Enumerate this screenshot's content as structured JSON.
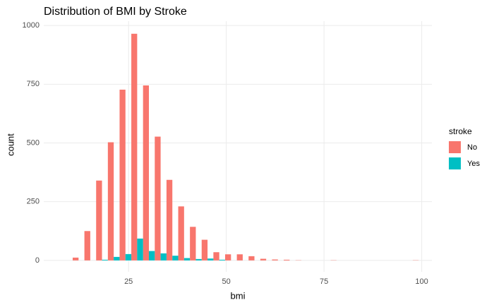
{
  "chart_data": {
    "type": "histogram",
    "title": "Distribution of BMI by Stroke",
    "x_label": "bmi",
    "y_label": "count",
    "legend_title": "stroke",
    "bins": [
      10.7,
      13.7,
      16.7,
      19.7,
      22.7,
      25.7,
      28.7,
      31.7,
      34.7,
      37.7,
      40.7,
      43.7,
      46.7,
      49.7,
      52.7,
      55.7,
      58.7,
      61.7,
      64.7,
      67.7,
      70.7,
      73.7,
      76.7,
      79.7,
      82.7,
      85.7,
      88.7,
      91.7,
      94.7,
      97.7,
      100.7
    ],
    "series": [
      {
        "name": "No",
        "color": "#F8766D",
        "values": [
          12,
          125,
          340,
          503,
          727,
          965,
          745,
          527,
          343,
          230,
          143,
          88,
          35,
          26,
          26,
          18,
          7,
          4,
          3,
          1,
          0,
          0,
          1,
          0,
          0,
          0,
          0,
          0,
          0,
          1
        ]
      },
      {
        "name": "Yes",
        "color": "#00BFC4",
        "values": [
          0,
          0,
          3,
          15,
          27,
          93,
          40,
          30,
          20,
          10,
          6,
          8,
          3,
          0,
          0,
          0,
          0,
          0,
          0,
          0,
          0,
          0,
          0,
          0,
          0,
          0,
          0,
          0,
          0,
          0
        ]
      }
    ],
    "xlim": [
      3.3,
      102.6
    ],
    "xticks": [
      25,
      50,
      75,
      100
    ],
    "ylim": [
      -48.5,
      1018.5
    ],
    "yticks": [
      0,
      250,
      500,
      750,
      1000
    ],
    "grid": true,
    "legend_position": "right"
  }
}
